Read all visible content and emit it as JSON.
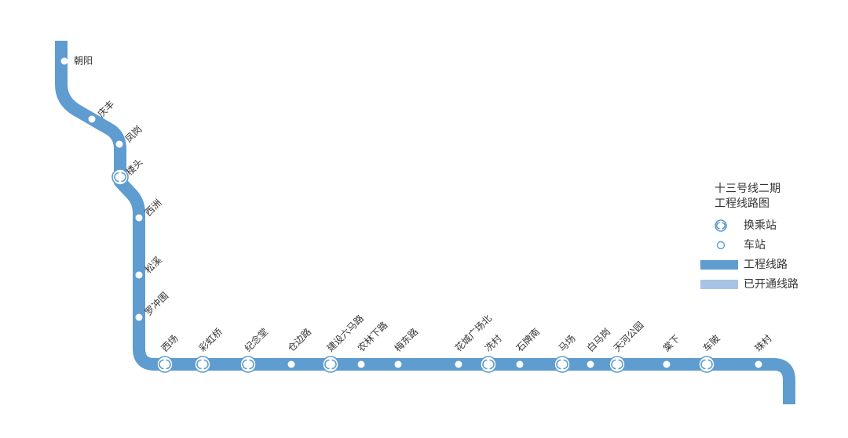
{
  "legend": {
    "title": [
      "十三号线二期",
      "工程线路图"
    ],
    "items": [
      {
        "label": "换乘站",
        "kind": "interchange"
      },
      {
        "label": "车站",
        "kind": "station"
      },
      {
        "label": "工程线路",
        "kind": "line",
        "color": "#5f9ccf"
      },
      {
        "label": "已开通线路",
        "kind": "line",
        "color": "#a6c4e6"
      }
    ]
  },
  "line_color": "#5f9ccf",
  "stations": [
    {
      "name": "朝阳",
      "interchange": false
    },
    {
      "name": "庆丰",
      "interchange": false
    },
    {
      "name": "凤岗",
      "interchange": false
    },
    {
      "name": "楼头",
      "interchange": true
    },
    {
      "name": "西洲",
      "interchange": false
    },
    {
      "name": "松溪",
      "interchange": false
    },
    {
      "name": "罗冲围",
      "interchange": false
    },
    {
      "name": "西场",
      "interchange": true
    },
    {
      "name": "彩虹桥",
      "interchange": true
    },
    {
      "name": "纪念堂",
      "interchange": true
    },
    {
      "name": "仓边路",
      "interchange": false
    },
    {
      "name": "建设六马路",
      "interchange": true
    },
    {
      "name": "农林下路",
      "interchange": false
    },
    {
      "name": "梅东路",
      "interchange": false
    },
    {
      "name": "花城广场北",
      "interchange": false
    },
    {
      "name": "冼村",
      "interchange": true
    },
    {
      "name": "石牌南",
      "interchange": false
    },
    {
      "name": "马场",
      "interchange": true
    },
    {
      "name": "白马岗",
      "interchange": false
    },
    {
      "name": "天河公园",
      "interchange": true
    },
    {
      "name": "棠下",
      "interchange": false
    },
    {
      "name": "车陂",
      "interchange": true
    },
    {
      "name": "珠村",
      "interchange": false
    }
  ]
}
